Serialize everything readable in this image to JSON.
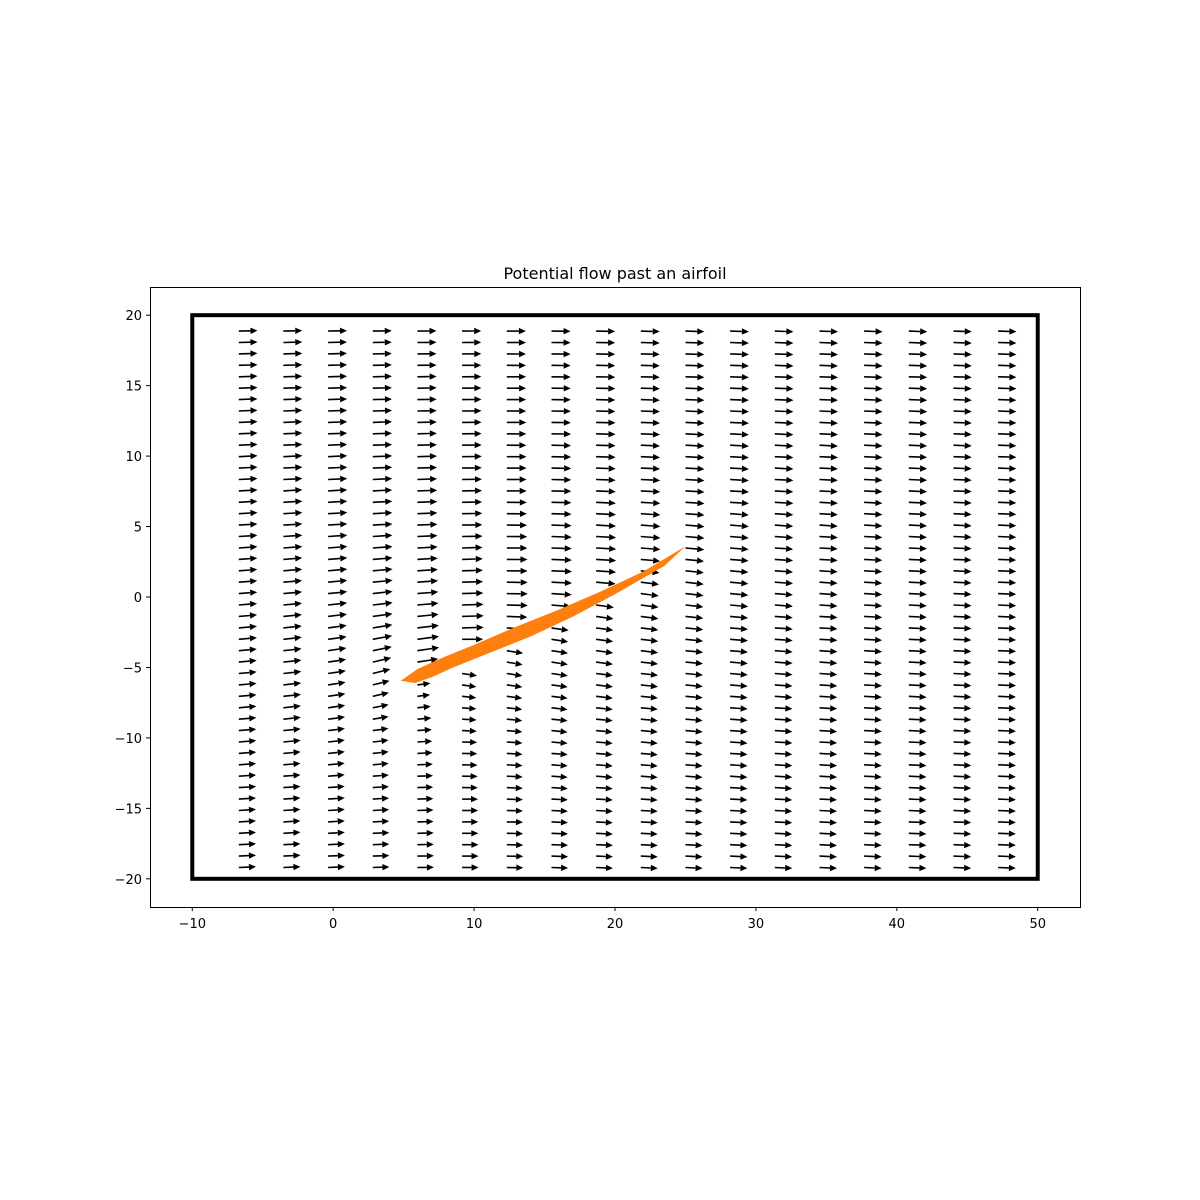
{
  "chart_data": {
    "type": "quiver",
    "title": "Potential flow past an airfoil",
    "xlabel": "",
    "ylabel": "",
    "xlim": [
      -13,
      53
    ],
    "ylim": [
      -22,
      22
    ],
    "xticks": [
      -10,
      0,
      10,
      20,
      30,
      40,
      50
    ],
    "yticks": [
      -20,
      -15,
      -10,
      -5,
      0,
      5,
      10,
      15,
      20
    ],
    "xtick_labels": [
      "−10",
      "0",
      "10",
      "20",
      "30",
      "40",
      "50"
    ],
    "ytick_labels": [
      "−20",
      "−15",
      "−10",
      "−5",
      "0",
      "5",
      "10",
      "15",
      "20"
    ],
    "grid": false,
    "domain_box": {
      "x": [
        -10,
        50
      ],
      "y": [
        -20,
        20
      ]
    },
    "quiver_grid": {
      "x_start": -6.7,
      "x_step": 3.17,
      "x_count": 18,
      "y_start": -19.2,
      "y_step": 0.81,
      "y_count": 48
    },
    "freestream": {
      "u": 1.0,
      "v": 0.0
    },
    "airfoil": {
      "chord_start": [
        5.0,
        -5.9
      ],
      "chord_end": [
        25.0,
        3.6
      ],
      "polygon": [
        [
          4.8,
          -5.95
        ],
        [
          6.0,
          -5.1
        ],
        [
          8.0,
          -4.2
        ],
        [
          10.0,
          -3.4
        ],
        [
          13.0,
          -2.1
        ],
        [
          16.0,
          -0.9
        ],
        [
          19.0,
          0.4
        ],
        [
          22.0,
          1.8
        ],
        [
          25.0,
          3.6
        ],
        [
          23.5,
          2.2
        ],
        [
          20.0,
          0.2
        ],
        [
          17.0,
          -1.4
        ],
        [
          14.0,
          -2.8
        ],
        [
          11.0,
          -4.0
        ],
        [
          8.5,
          -5.0
        ],
        [
          7.0,
          -5.7
        ],
        [
          5.8,
          -6.1
        ]
      ]
    },
    "colors": {
      "airfoil": "#ff7f0e",
      "arrows": "#000000",
      "box": "#000000",
      "axes": "#000000"
    }
  }
}
